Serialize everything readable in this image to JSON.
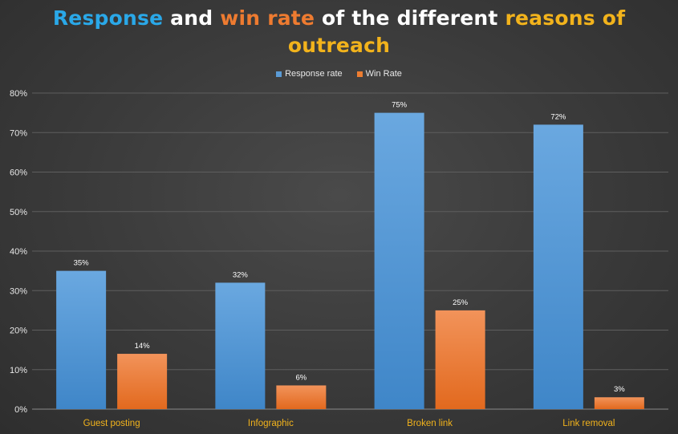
{
  "title": {
    "p1": "Response",
    "p2": " and ",
    "p3": "win rate",
    "p4": " of the different ",
    "p5": "reasons of",
    "p6": "outreach"
  },
  "chart_data": {
    "type": "bar",
    "title": "Response and win rate of the different reasons of outreach",
    "categories": [
      "Guest posting",
      "Infographic",
      "Broken link",
      "Link removal"
    ],
    "series": [
      {
        "name": "Response rate",
        "values": [
          35,
          32,
          75,
          72
        ],
        "color": "#5b9bd5"
      },
      {
        "name": "Win Rate",
        "values": [
          14,
          6,
          25,
          3
        ],
        "color": "#ed7d31"
      }
    ],
    "yticks": [
      "0%",
      "10%",
      "20%",
      "30%",
      "40%",
      "50%",
      "60%",
      "70%",
      "80%"
    ],
    "ylim": [
      0,
      80
    ],
    "value_suffix": "%",
    "legend_position": "top",
    "grid": true
  }
}
